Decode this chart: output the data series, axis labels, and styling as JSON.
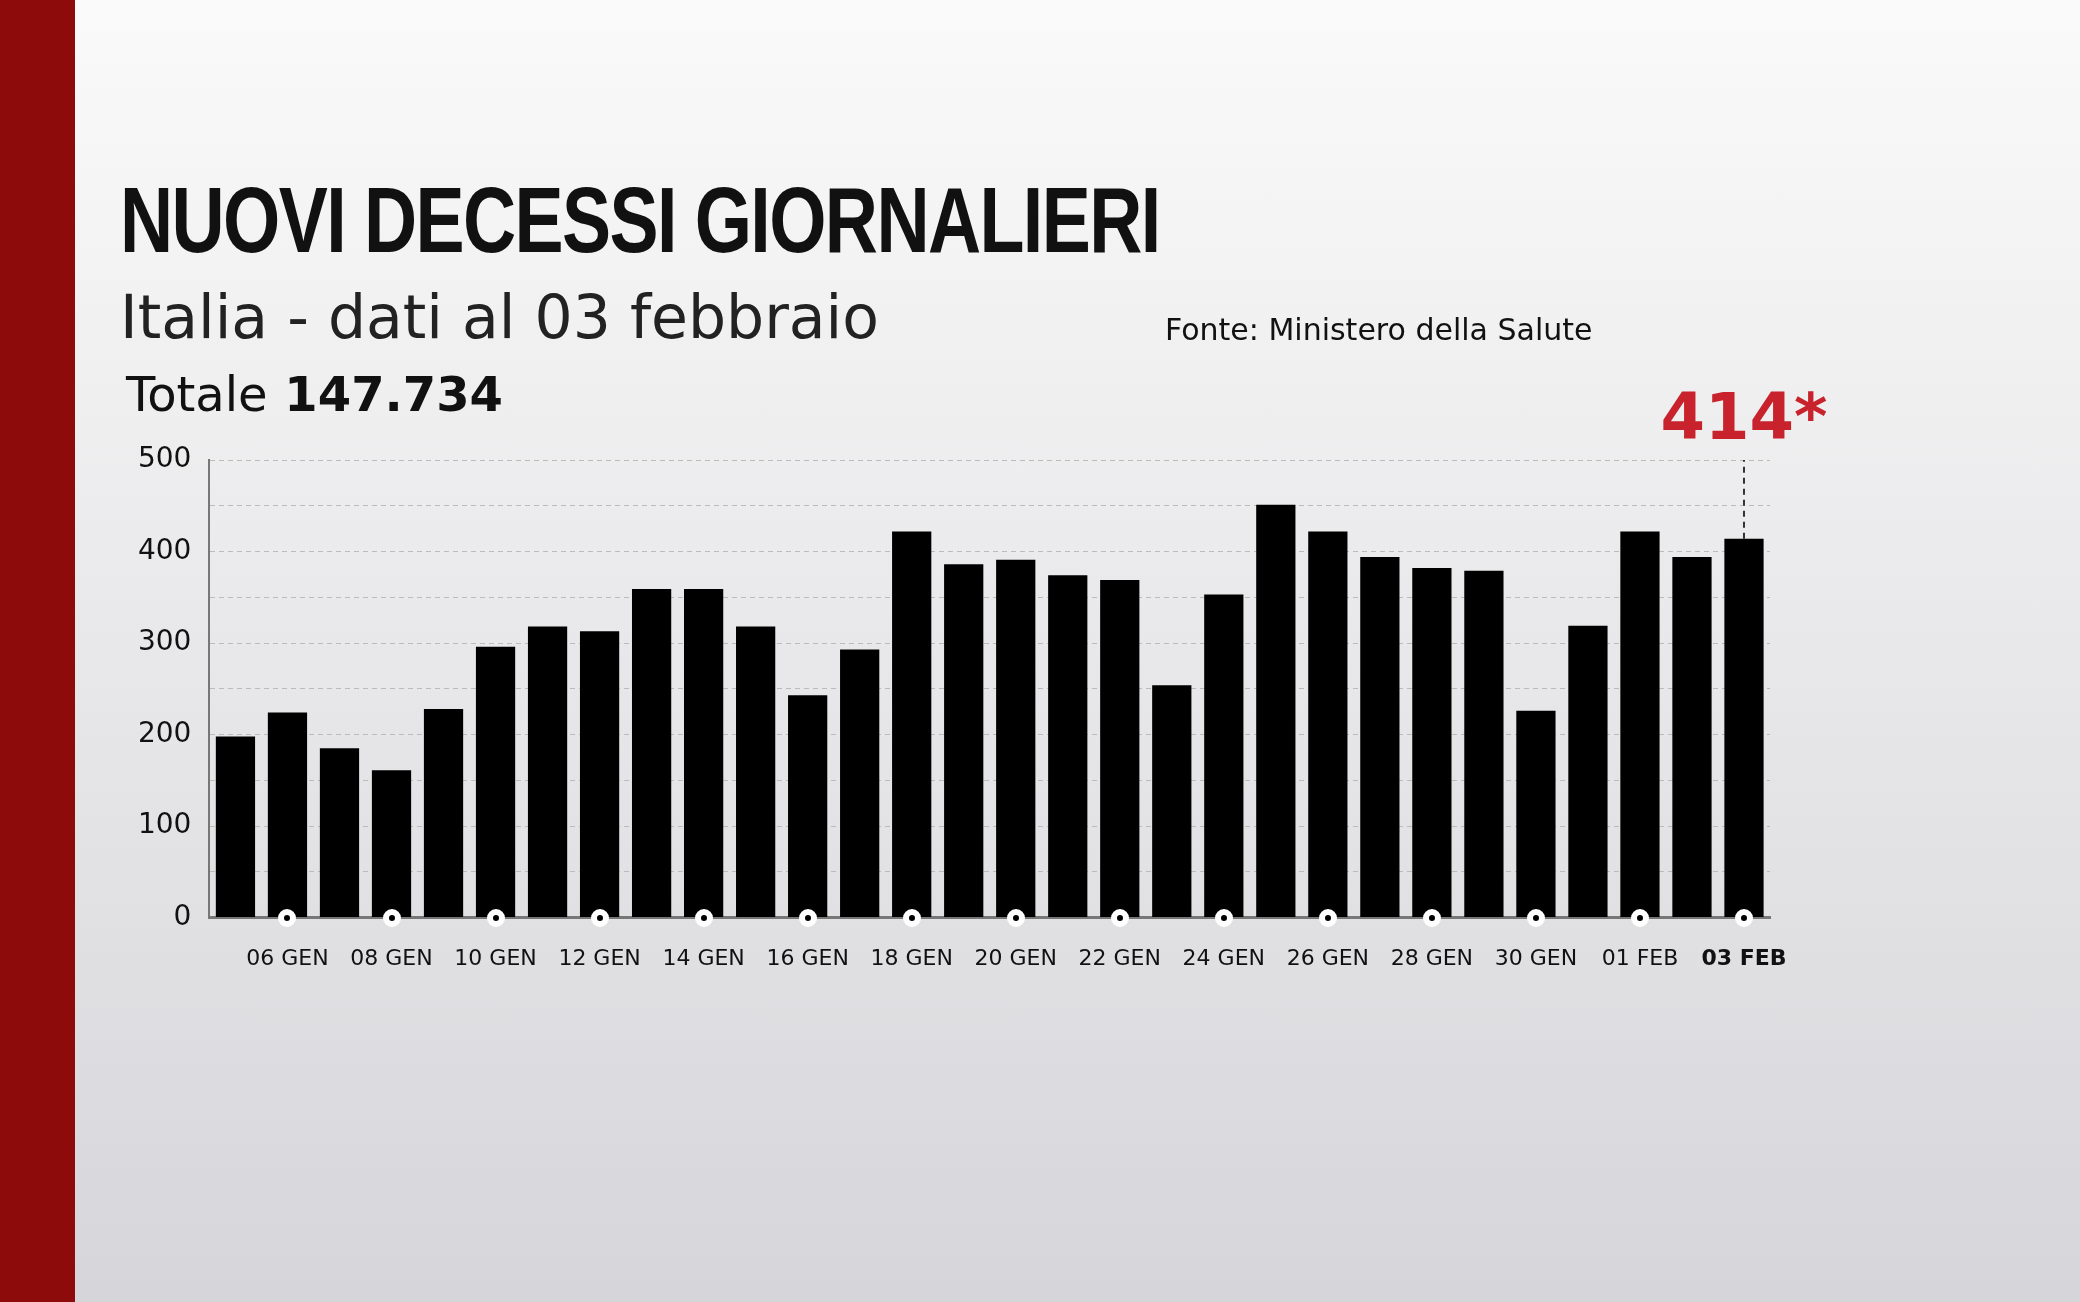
{
  "chart_data": {
    "type": "bar",
    "title": "NUOVI DECESSI GIORNALIERI",
    "subtitle": "Italia - dati al 03 febbraio",
    "categories": [
      null,
      "06 GEN",
      null,
      "08 GEN",
      null,
      "10 GEN",
      null,
      "12 GEN",
      null,
      "14 GEN",
      null,
      "16 GEN",
      null,
      "18 GEN",
      null,
      "20 GEN",
      null,
      "22 GEN",
      null,
      "24 GEN",
      null,
      "26 GEN",
      null,
      "28 GEN",
      null,
      "30 GEN",
      null,
      "01 FEB",
      null,
      "03 FEB"
    ],
    "values": [
      198,
      224,
      185,
      161,
      228,
      296,
      318,
      313,
      359,
      359,
      318,
      243,
      293,
      422,
      386,
      391,
      374,
      369,
      254,
      353,
      451,
      422,
      394,
      382,
      379,
      226,
      319,
      422,
      394,
      414
    ],
    "color": "#000000",
    "ylim": [
      0,
      500
    ],
    "yticks": [
      0,
      {
        "value": 50,
        "label": null
      },
      100,
      {
        "value": 150,
        "label": null
      },
      200,
      {
        "value": 250,
        "label": null
      },
      300,
      {
        "value": 350,
        "label": null
      },
      400,
      {
        "value": 450,
        "label": null
      },
      500
    ],
    "grid": "y",
    "annotations": [
      {
        "text": "414*",
        "x": "03 FEB",
        "y": 414
      },
      "Totale 147.734",
      "Fonte: Ministero della Salute"
    ]
  }
}
